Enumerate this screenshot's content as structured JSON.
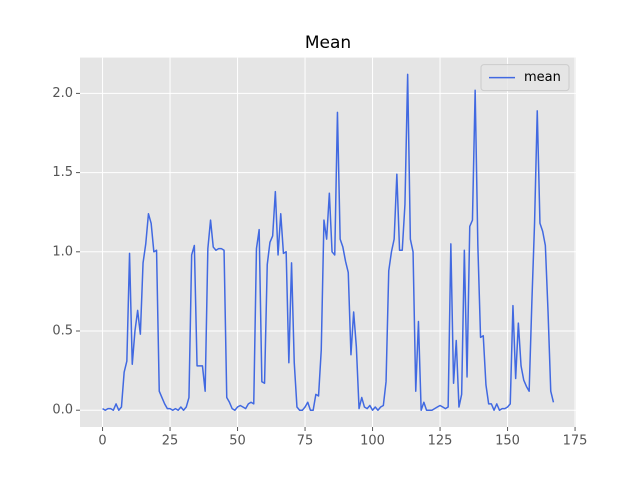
{
  "chart_data": {
    "type": "line",
    "title": "Mean",
    "x": [
      0,
      1,
      2,
      3,
      4,
      5,
      6,
      7,
      8,
      9,
      10,
      11,
      12,
      13,
      14,
      15,
      16,
      17,
      18,
      19,
      20,
      21,
      22,
      23,
      24,
      25,
      26,
      27,
      28,
      29,
      30,
      31,
      32,
      33,
      34,
      35,
      36,
      37,
      38,
      39,
      40,
      41,
      42,
      43,
      44,
      45,
      46,
      47,
      48,
      49,
      50,
      51,
      52,
      53,
      54,
      55,
      56,
      57,
      58,
      59,
      60,
      61,
      62,
      63,
      64,
      65,
      66,
      67,
      68,
      69,
      70,
      71,
      72,
      73,
      74,
      75,
      76,
      77,
      78,
      79,
      80,
      81,
      82,
      83,
      84,
      85,
      86,
      87,
      88,
      89,
      90,
      91,
      92,
      93,
      94,
      95,
      96,
      97,
      98,
      99,
      100,
      101,
      102,
      103,
      104,
      105,
      106,
      107,
      108,
      109,
      110,
      111,
      112,
      113,
      114,
      115,
      116,
      117,
      118,
      119,
      120,
      121,
      122,
      123,
      124,
      125,
      126,
      127,
      128,
      129,
      130,
      131,
      132,
      133,
      134,
      135,
      136,
      137,
      138,
      139,
      140,
      141,
      142,
      143,
      144,
      145,
      146,
      147,
      148,
      149,
      150,
      151,
      152,
      153,
      154,
      155,
      156,
      157,
      158,
      159,
      160,
      161,
      162,
      163,
      164,
      165,
      166,
      167
    ],
    "series": [
      {
        "name": "mean",
        "color": "#4169e1",
        "values": [
          0.01,
          0,
          0.01,
          0.01,
          0,
          0.04,
          0,
          0.02,
          0.24,
          0.31,
          0.99,
          0.29,
          0.5,
          0.63,
          0.48,
          0.93,
          1.05,
          1.24,
          1.18,
          1.0,
          1.01,
          0.12,
          0.08,
          0.04,
          0.01,
          0.01,
          0,
          0.01,
          0,
          0.02,
          0,
          0.02,
          0.08,
          0.98,
          1.04,
          0.28,
          0.28,
          0.28,
          0.12,
          1.02,
          1.2,
          1.03,
          1.01,
          1.02,
          1.02,
          1.01,
          0.08,
          0.05,
          0.01,
          0,
          0.02,
          0.03,
          0.02,
          0.01,
          0.04,
          0.05,
          0.04,
          1.02,
          1.14,
          0.18,
          0.17,
          0.92,
          1.06,
          1.1,
          1.38,
          0.98,
          1.24,
          0.99,
          1.0,
          0.3,
          0.93,
          0.3,
          0.02,
          0,
          0,
          0.02,
          0.05,
          0,
          0,
          0.1,
          0.09,
          0.38,
          1.2,
          1.08,
          1.37,
          1.0,
          0.98,
          1.88,
          1.08,
          1.03,
          0.94,
          0.87,
          0.35,
          0.62,
          0.4,
          0.01,
          0.08,
          0.02,
          0.01,
          0.03,
          0,
          0.02,
          0,
          0.02,
          0.03,
          0.18,
          0.88,
          1.0,
          1.08,
          1.49,
          1.01,
          1.01,
          1.3,
          2.12,
          1.08,
          1.0,
          0.12,
          0.56,
          0,
          0.05,
          0,
          0,
          0,
          0.01,
          0.02,
          0.03,
          0.02,
          0.01,
          0.02,
          1.05,
          0.17,
          0.44,
          0.02,
          0.1,
          1.01,
          0.21,
          1.16,
          1.2,
          2.02,
          1.04,
          0.46,
          0.47,
          0.16,
          0.04,
          0.04,
          0,
          0.04,
          0,
          0.01,
          0.01,
          0.02,
          0.04,
          0.66,
          0.2,
          0.55,
          0.28,
          0.19,
          0.15,
          0.12,
          0.68,
          1.18,
          1.89,
          1.18,
          1.13,
          1.04,
          0.62,
          0.12,
          0.05
        ]
      }
    ],
    "xlim": [
      -8.35,
      175.35
    ],
    "xticks": [
      0,
      25,
      50,
      75,
      100,
      125,
      150,
      175
    ],
    "ylim": [
      -0.106,
      2.226
    ],
    "yticks": [
      {
        "value": 0,
        "label": "0.0"
      },
      0.5,
      {
        "value": 1,
        "label": "1.0"
      },
      1.5,
      {
        "value": 2,
        "label": "2.0"
      }
    ],
    "grid": true,
    "legend": "upper right"
  }
}
